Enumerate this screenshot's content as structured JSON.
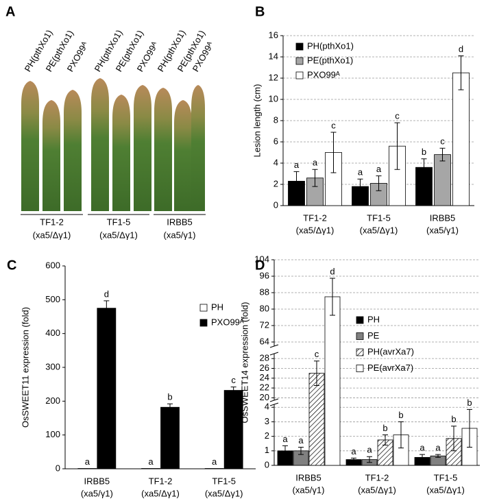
{
  "panel_a": {
    "label": "A",
    "leaf_labels": [
      "PH(pthXo1)",
      "PE(pthXo1)",
      "PXO99ᴬ",
      "PH(pthXo1)",
      "PE(pthXo1)",
      "PXO99ᴬ",
      "PH(pthXo1)",
      "PE(pthXo1)",
      "PXO99ᴬ"
    ],
    "groups": [
      [
        "TF1-2",
        "(xa5/Δγ1)"
      ],
      [
        "TF1-5",
        "(xa5/Δγ1)"
      ],
      [
        "IRBB5",
        "(xa5/γ1)"
      ]
    ]
  },
  "chart_data": [
    {
      "panel_label": "B",
      "type": "bar",
      "ylabel": "Lesion length (cm)",
      "categories": [
        [
          "TF1-2",
          "(xa5/Δγ1)"
        ],
        [
          "TF1-5",
          "(xa5/Δγ1)"
        ],
        [
          "IRBB5",
          "(xa5/γ1)"
        ]
      ],
      "series": [
        {
          "name": "PH(pthXo1)",
          "color": "#000000",
          "values": [
            2.3,
            1.8,
            3.6
          ],
          "errors": [
            0.9,
            0.7,
            0.8
          ],
          "letters": [
            "a",
            "a",
            "b"
          ]
        },
        {
          "name": "PE(pthXo1)",
          "color": "#a6a6a6",
          "values": [
            2.6,
            2.1,
            4.8
          ],
          "errors": [
            0.8,
            0.7,
            0.6
          ],
          "letters": [
            "a",
            "a",
            "c"
          ]
        },
        {
          "name": "PXO99ᴬ",
          "color": "#ffffff",
          "values": [
            5.0,
            5.6,
            12.5
          ],
          "errors": [
            1.9,
            2.2,
            1.6
          ],
          "letters": [
            "c",
            "c",
            "d"
          ]
        }
      ],
      "ylim": [
        0,
        16
      ],
      "yticks": [
        0,
        2,
        4,
        6,
        8,
        10,
        12,
        14,
        16
      ],
      "grid": true,
      "legend": "upper left"
    },
    {
      "panel_label": "C",
      "type": "bar",
      "ylabel": "OsSWEET11 expression (fold)",
      "categories": [
        [
          "IRBB5",
          "(xa5/γ1)"
        ],
        [
          "TF1-2",
          "(xa5/Δγ1)"
        ],
        [
          "TF1-5",
          "(xa5/Δγ1)"
        ]
      ],
      "series": [
        {
          "name": "PH",
          "color": "#ffffff",
          "values": [
            1,
            1,
            1
          ],
          "errors": [
            0,
            0,
            0
          ],
          "letters": [
            "a",
            "a",
            "a"
          ]
        },
        {
          "name": "PXO99ᴬ",
          "color": "#000000",
          "values": [
            475,
            182,
            232
          ],
          "errors": [
            22,
            10,
            10
          ],
          "letters": [
            "d",
            "b",
            "c"
          ]
        }
      ],
      "ylim": [
        0,
        600
      ],
      "yticks": [
        0,
        100,
        200,
        300,
        400,
        500,
        600
      ],
      "grid": false,
      "legend": "upper right"
    },
    {
      "panel_label": "D",
      "type": "bar",
      "ylabel": "OsSWEET14 expression (fold)",
      "categories": [
        [
          "IRBB5",
          "(xa5/γ1)"
        ],
        [
          "TF1-2",
          "(xa5/Δγ1)"
        ],
        [
          "TF1-5",
          "(xa5/Δγ1)"
        ]
      ],
      "series": [
        {
          "name": "PH",
          "color": "#000000",
          "values": [
            1.0,
            0.4,
            0.55
          ],
          "errors": [
            0.35,
            0.1,
            0.2
          ],
          "letters": [
            "a",
            "a",
            "a"
          ]
        },
        {
          "name": "PE",
          "color": "#808080",
          "values": [
            1.0,
            0.4,
            0.65
          ],
          "errors": [
            0.25,
            0.2,
            0.1
          ],
          "letters": [
            "a",
            "a",
            "a"
          ]
        },
        {
          "name": "PH(avrXa7)",
          "color": "#ffffff",
          "pattern": "hatch",
          "values": [
            25,
            1.75,
            1.85
          ],
          "errors": [
            2.5,
            0.35,
            0.85
          ],
          "letters": [
            "c",
            "b",
            "b"
          ]
        },
        {
          "name": "PE(avrXa7)",
          "color": "#ffffff",
          "values": [
            86,
            2.1,
            2.55
          ],
          "errors": [
            9,
            0.9,
            1.3
          ],
          "letters": [
            "d",
            "b",
            "b"
          ]
        }
      ],
      "y_segments": [
        {
          "ylim": [
            0,
            4.2
          ],
          "yticks": [
            0,
            1,
            2,
            3,
            4
          ]
        },
        {
          "ylim": [
            19.5,
            29
          ],
          "yticks": [
            20,
            22,
            24,
            26,
            28
          ]
        },
        {
          "ylim": [
            62,
            104
          ],
          "yticks": [
            64,
            72,
            80,
            88,
            96,
            104
          ]
        }
      ],
      "grid": true,
      "legend": "right"
    }
  ]
}
